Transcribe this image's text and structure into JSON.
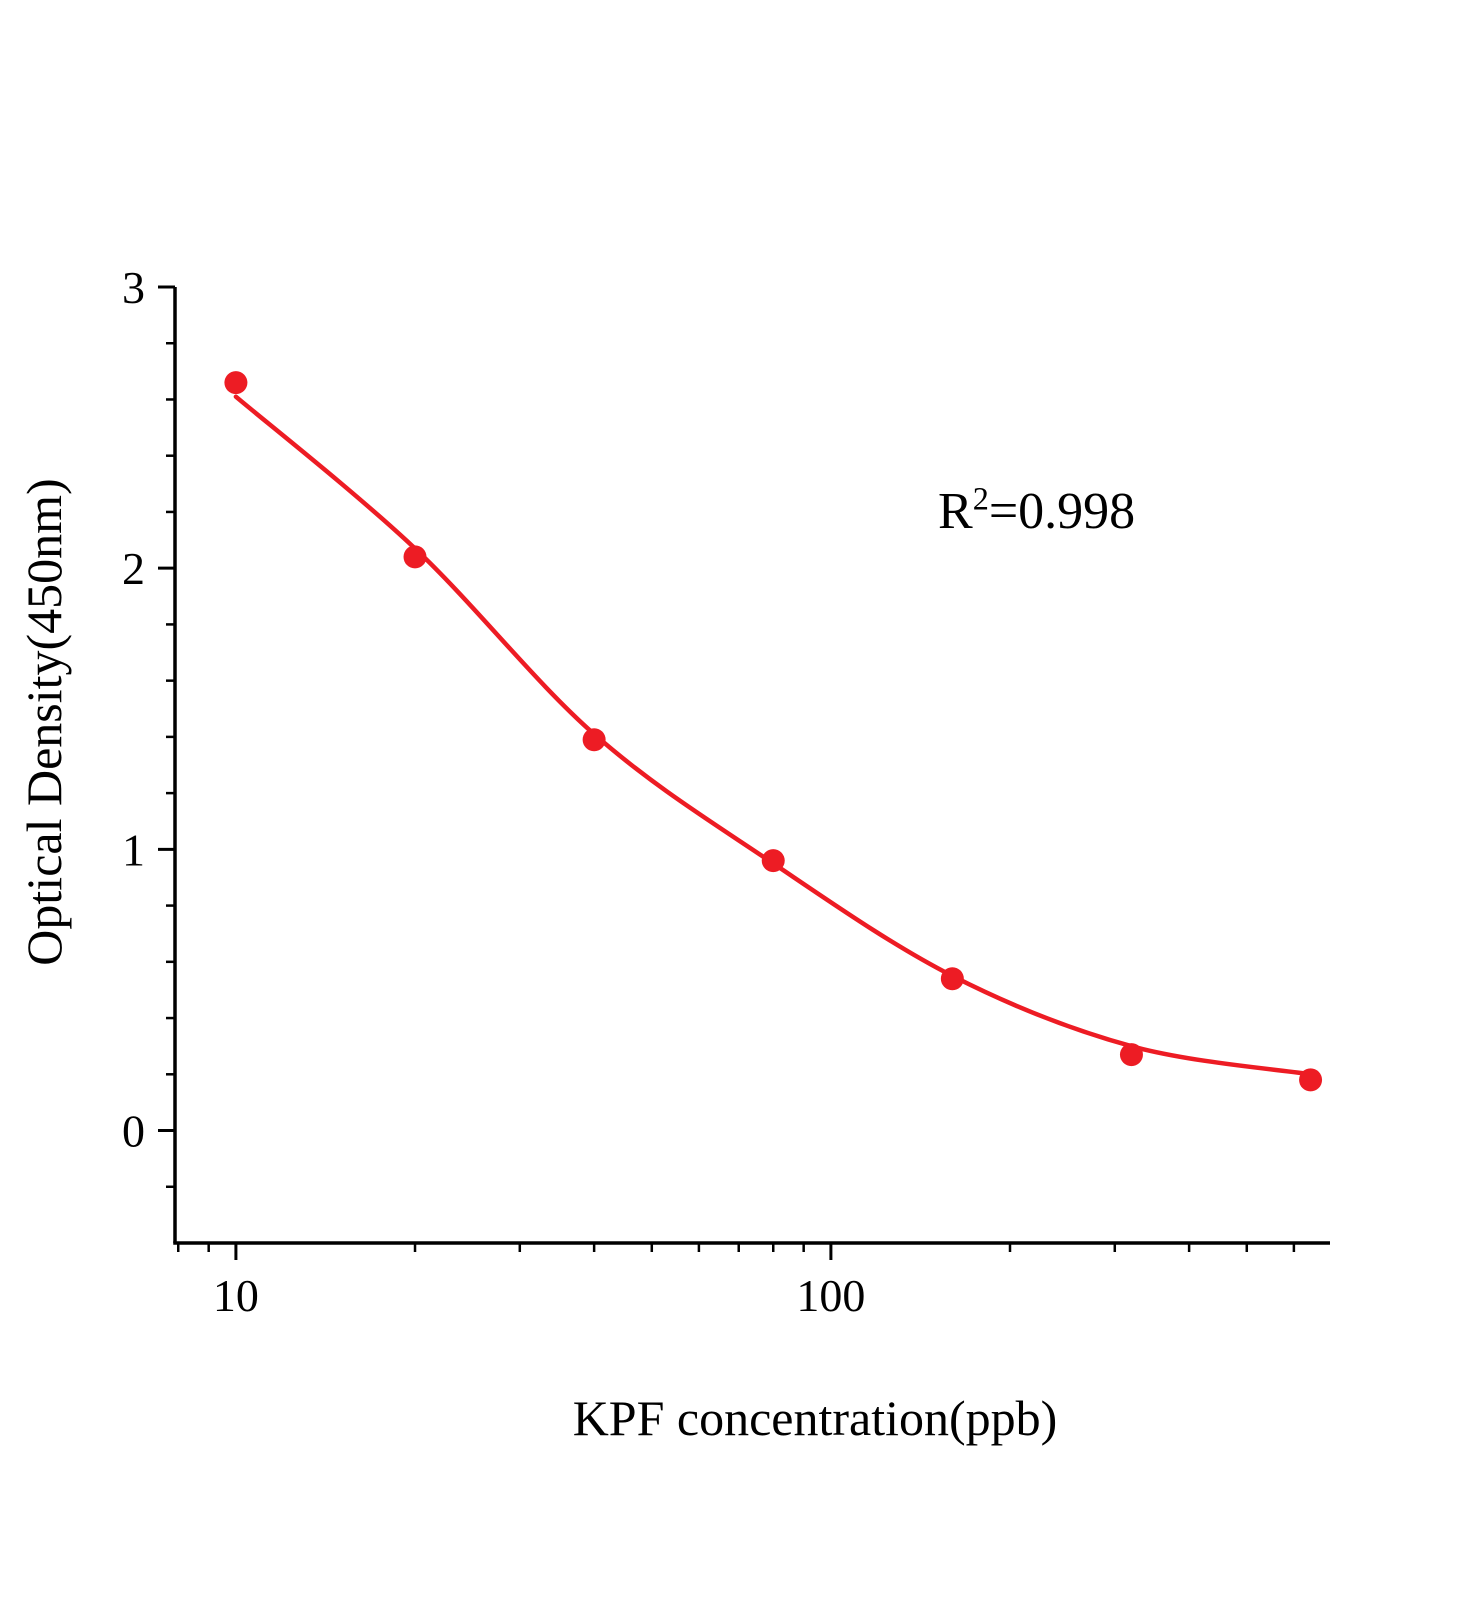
{
  "chart_data": {
    "type": "scatter",
    "title": "",
    "xlabel": "KPF concentration(ppb)",
    "ylabel": "Optical Density(450nm)",
    "x_scale": "log",
    "xlim": [
      7.9,
      690
    ],
    "ylim": [
      -0.4,
      3
    ],
    "x": [
      10,
      20,
      40,
      80,
      160,
      320,
      640
    ],
    "y": [
      2.66,
      2.04,
      1.39,
      0.96,
      0.54,
      0.27,
      0.18
    ],
    "curve_y": [
      2.61,
      2.07,
      1.41,
      0.95,
      0.55,
      0.3,
      0.2
    ],
    "x_major_ticks": [
      10,
      100
    ],
    "x_minor_ticks": [
      8,
      9,
      20,
      30,
      40,
      50,
      60,
      70,
      80,
      90,
      200,
      300,
      400,
      500,
      600
    ],
    "y_major_ticks": [
      0,
      1,
      2,
      3
    ],
    "y_minor_ticks": [
      -0.2,
      0.2,
      0.4,
      0.6,
      0.8,
      1.2,
      1.4,
      1.6,
      1.8,
      2.2,
      2.4,
      2.6,
      2.8
    ],
    "annotation": {
      "base": "R",
      "superscript": "2",
      "rest": "=0.998"
    },
    "point_color": "#ed1c24",
    "curve_color": "#ed1c24",
    "axis_color": "#000000",
    "legend": "none",
    "grid": "off"
  }
}
